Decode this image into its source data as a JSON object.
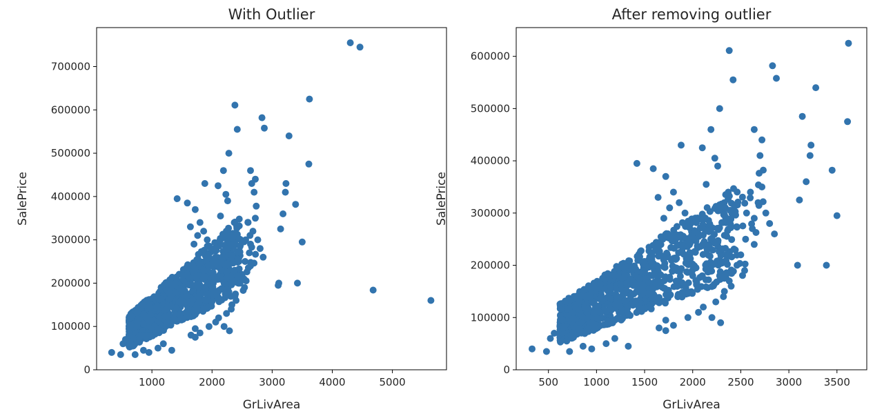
{
  "chart_data": [
    {
      "type": "scatter",
      "title": "With Outlier",
      "xlabel": "GrLivArea",
      "ylabel": "SalePrice",
      "xlim": [
        80,
        5900
      ],
      "ylim": [
        0,
        790000
      ],
      "xticks": [
        1000,
        2000,
        3000,
        4000,
        5000
      ],
      "yticks": [
        0,
        100000,
        200000,
        300000,
        400000,
        500000,
        600000,
        700000
      ],
      "xtick_labels": [
        "1000",
        "2000",
        "3000",
        "4000",
        "5000"
      ],
      "ytick_labels": [
        "0",
        "100000",
        "200000",
        "300000",
        "400000",
        "500000",
        "600000",
        "700000"
      ],
      "color": "#3274ae",
      "grid": false,
      "x": [
        4300,
        4460,
        4680,
        5640,
        3620,
        3610,
        3500,
        3420,
        3390,
        3280,
        3230,
        3220,
        3180,
        3140,
        3110,
        3100,
        2870,
        2830,
        2720,
        2700,
        2660,
        2640,
        2600,
        2560,
        2420,
        2380,
        2370,
        2340,
        2280,
        2260,
        2230,
        2190,
        2140,
        2100,
        1880,
        1720,
        1590,
        1420,
        330,
        480,
        520,
        560,
        690,
        720,
        860,
        950,
        1100,
        1190,
        1330,
        1720,
        1650,
        1720,
        1800,
        1950,
        2060,
        2110,
        2200,
        2240,
        2290,
        2330,
        2400,
        2460,
        2500,
        2550,
        2620,
        2640,
        2680,
        2720,
        2760,
        2800,
        2850,
        2640,
        2540,
        2380,
        2320,
        2280,
        2200,
        2150,
        2100,
        2060,
        2020,
        1980,
        1920,
        1860,
        1800,
        1760,
        1700,
        1640
      ],
      "y": [
        755000,
        745000,
        184000,
        160000,
        625000,
        475000,
        295000,
        200000,
        382000,
        540000,
        430000,
        410000,
        360000,
        325000,
        200000,
        195000,
        558000,
        582000,
        440000,
        410000,
        430000,
        460000,
        340000,
        300000,
        555000,
        611000,
        340000,
        310000,
        500000,
        390000,
        405000,
        460000,
        355000,
        425000,
        430000,
        370000,
        385000,
        395000,
        40000,
        35000,
        60000,
        70000,
        55000,
        35000,
        45000,
        40000,
        50000,
        60000,
        45000,
        75000,
        80000,
        95000,
        85000,
        100000,
        110000,
        120000,
        100000,
        130000,
        90000,
        150000,
        160000,
        200000,
        220000,
        250000,
        270000,
        290000,
        320000,
        350000,
        300000,
        280000,
        260000,
        240000,
        190000,
        170000,
        140000,
        180000,
        200000,
        230000,
        180000,
        260000,
        250000,
        280000,
        300000,
        320000,
        340000,
        310000,
        290000,
        330000
      ]
    },
    {
      "type": "scatter",
      "title": "After removing outlier",
      "xlabel": "GrLivArea",
      "ylabel": "SalePrice",
      "xlim": [
        165,
        3810
      ],
      "ylim": [
        0,
        655000
      ],
      "xticks": [
        500,
        1000,
        1500,
        2000,
        2500,
        3000,
        3500
      ],
      "yticks": [
        0,
        100000,
        200000,
        300000,
        400000,
        500000,
        600000
      ],
      "xtick_labels": [
        "500",
        "1000",
        "1500",
        "2000",
        "2500",
        "3000",
        "3500"
      ],
      "ytick_labels": [
        "0",
        "100000",
        "200000",
        "300000",
        "400000",
        "500000",
        "600000"
      ],
      "color": "#3274ae",
      "grid": false,
      "x": [
        3620,
        3610,
        3500,
        3450,
        3390,
        3280,
        3230,
        3220,
        3180,
        3140,
        3110,
        3090,
        2870,
        2830,
        2720,
        2700,
        2640,
        2600,
        2560,
        2420,
        2380,
        2370,
        2340,
        2280,
        2260,
        2230,
        2190,
        2140,
        2100,
        1880,
        1720,
        1590,
        1420,
        330,
        480,
        520,
        560,
        690,
        720,
        860,
        950,
        1100,
        1190,
        1330,
        1720,
        1650,
        1720,
        1800,
        1950,
        2060,
        2110,
        2200,
        2240,
        2290,
        2330,
        2400,
        2460,
        2500,
        2550,
        2620,
        2640,
        2680,
        2720,
        2760,
        2800,
        2850,
        2640,
        2540,
        2380,
        2320,
        2280,
        2200,
        2150,
        2100,
        2060,
        2020,
        1980,
        1920,
        1860,
        1800,
        1760,
        1700,
        1640
      ],
      "y": [
        625000,
        475000,
        295000,
        382000,
        200000,
        540000,
        430000,
        410000,
        360000,
        485000,
        325000,
        200000,
        558000,
        582000,
        440000,
        410000,
        460000,
        340000,
        300000,
        555000,
        611000,
        340000,
        310000,
        500000,
        390000,
        405000,
        460000,
        355000,
        425000,
        430000,
        370000,
        385000,
        395000,
        40000,
        35000,
        60000,
        70000,
        55000,
        35000,
        45000,
        40000,
        50000,
        60000,
        45000,
        75000,
        80000,
        95000,
        85000,
        100000,
        110000,
        120000,
        100000,
        130000,
        90000,
        150000,
        160000,
        200000,
        220000,
        250000,
        270000,
        290000,
        320000,
        350000,
        300000,
        280000,
        260000,
        240000,
        190000,
        170000,
        140000,
        180000,
        200000,
        230000,
        180000,
        260000,
        250000,
        280000,
        300000,
        320000,
        340000,
        310000,
        290000,
        330000
      ]
    }
  ]
}
